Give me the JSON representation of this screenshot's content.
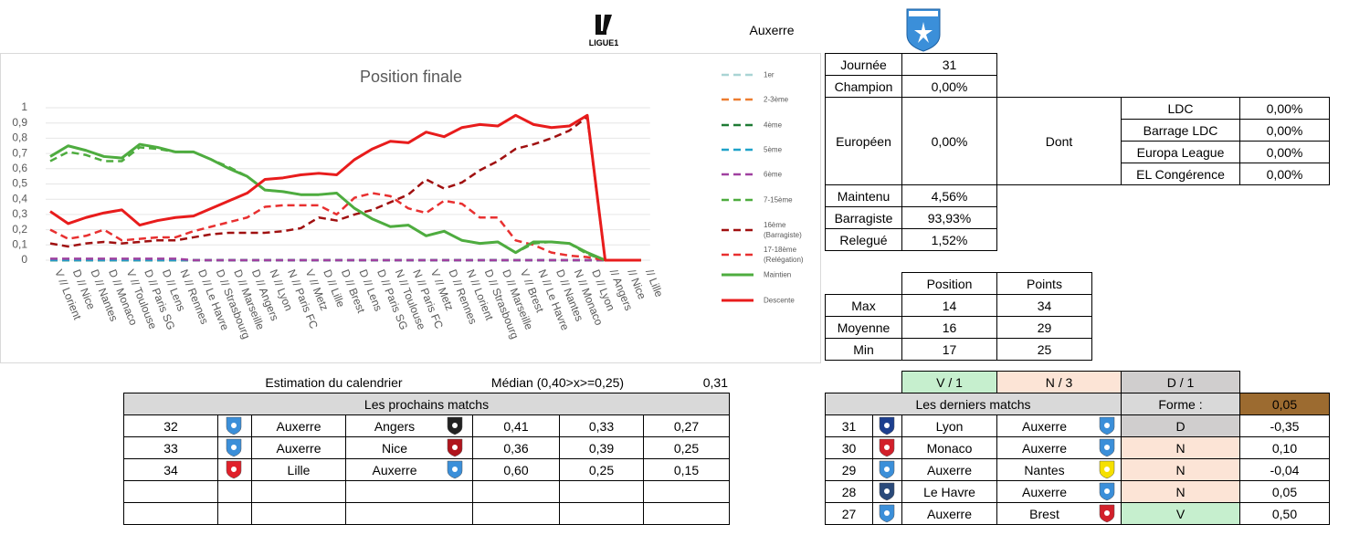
{
  "header": {
    "team": "Auxerre",
    "league_logo": "LIGUE1"
  },
  "chart_data": {
    "type": "line",
    "title": "Position finale",
    "categories": [
      "V // Lorient",
      "D // Nice",
      "D // Nantes",
      "D // Monaco",
      "V // Toulouse",
      "D // Paris SG",
      "D // Lens",
      "N // Rennes",
      "D // Le Havre",
      "D // Strasbourg",
      "D // Marseille",
      "D // Angers",
      "N // Lyon",
      "N // Paris FC",
      "V // Metz",
      "D // Lille",
      "D // Brest",
      "D // Lens",
      "D // Paris SG",
      "N // Toulouse",
      "N // Paris FC",
      "V // Metz",
      "D // Rennes",
      "N // Lorient",
      "D // Strasbourg",
      "D // Marseille",
      "V // Brest",
      "N // Le Havre",
      "D // Nantes",
      "N // Monaco",
      "D // Lyon",
      "// Angers",
      "// Nice",
      "// Lille"
    ],
    "ylim": [
      0,
      1
    ],
    "yticks": [
      0,
      {
        "value": 0.1,
        "label": "0,1"
      },
      {
        "value": 0.2,
        "label": "0,2"
      },
      {
        "value": 0.3,
        "label": "0,3"
      },
      {
        "value": 0.4,
        "label": "0,4"
      },
      {
        "value": 0.5,
        "label": "0,5"
      },
      {
        "value": 0.6,
        "label": "0,6"
      },
      {
        "value": 0.7,
        "label": "0,7"
      },
      {
        "value": 0.8,
        "label": "0,8"
      },
      {
        "value": 0.9,
        "label": "0,9"
      },
      1
    ],
    "grid": true,
    "legend": "right",
    "series": [
      {
        "name": "1er",
        "color": "#a9d4d4",
        "dash": true,
        "values": [
          0,
          0,
          0,
          0,
          0,
          0,
          0,
          0,
          0,
          0,
          0,
          0,
          0,
          0,
          0,
          0,
          0,
          0,
          0,
          0,
          0,
          0,
          0,
          0,
          0,
          0,
          0,
          0,
          0,
          0,
          0,
          0,
          0,
          0
        ]
      },
      {
        "name": "2-3ème",
        "color": "#ed7d31",
        "dash": true,
        "values": [
          0,
          0,
          0,
          0,
          0,
          0,
          0,
          0,
          0,
          0,
          0,
          0,
          0,
          0,
          0,
          0,
          0,
          0,
          0,
          0,
          0,
          0,
          0,
          0,
          0,
          0,
          0,
          0,
          0,
          0,
          0,
          0,
          0,
          0
        ]
      },
      {
        "name": "4ème",
        "color": "#1e7b34",
        "dash": true,
        "values": [
          0,
          0,
          0,
          0,
          0,
          0,
          0,
          0,
          0,
          0,
          0,
          0,
          0,
          0,
          0,
          0,
          0,
          0,
          0,
          0,
          0,
          0,
          0,
          0,
          0,
          0,
          0,
          0,
          0,
          0,
          0,
          0,
          0,
          0
        ]
      },
      {
        "name": "5ème",
        "color": "#1fa2c9",
        "dash": true,
        "values": [
          0,
          0,
          0,
          0,
          0,
          0,
          0,
          0,
          0,
          0,
          0,
          0,
          0,
          0,
          0,
          0,
          0,
          0,
          0,
          0,
          0,
          0,
          0,
          0,
          0,
          0,
          0,
          0,
          0,
          0,
          0,
          0,
          0,
          0
        ]
      },
      {
        "name": "6ème",
        "color": "#a040a0",
        "dash": true,
        "values": [
          0.01,
          0.01,
          0.01,
          0.01,
          0.01,
          0.01,
          0.01,
          0.01,
          0,
          0,
          0,
          0,
          0,
          0,
          0,
          0,
          0,
          0,
          0,
          0,
          0,
          0,
          0,
          0,
          0,
          0,
          0,
          0,
          0,
          0,
          0,
          0,
          0,
          0
        ]
      },
      {
        "name": "7-15ème",
        "color": "#4eac3f",
        "dash": true,
        "values": [
          0.65,
          0.71,
          0.69,
          0.65,
          0.65,
          0.74,
          0.73,
          0.71,
          0.71,
          0.66,
          0.61,
          0.55,
          0.46,
          0.45,
          0.43,
          0.43,
          0.44,
          0.34,
          0.27,
          0.22,
          0.23,
          0.16,
          0.19,
          0.13,
          0.11,
          0.12,
          0.05,
          0.11,
          0.12,
          0.11,
          0.04,
          0,
          0,
          0
        ]
      },
      {
        "name": "16ème (Barragiste)",
        "color": "#a01010",
        "dash": true,
        "values": [
          0.11,
          0.09,
          0.11,
          0.12,
          0.11,
          0.12,
          0.13,
          0.13,
          0.15,
          0.17,
          0.18,
          0.18,
          0.18,
          0.19,
          0.21,
          0.28,
          0.26,
          0.3,
          0.33,
          0.38,
          0.43,
          0.53,
          0.47,
          0.51,
          0.59,
          0.65,
          0.73,
          0.76,
          0.8,
          0.85,
          0.94,
          0,
          0,
          0
        ]
      },
      {
        "name": "17-18ème (Relégation)",
        "color": "#e83030",
        "dash": true,
        "values": [
          0.2,
          0.14,
          0.16,
          0.2,
          0.13,
          0.14,
          0.15,
          0.15,
          0.19,
          0.22,
          0.25,
          0.28,
          0.35,
          0.36,
          0.36,
          0.36,
          0.3,
          0.41,
          0.44,
          0.42,
          0.34,
          0.31,
          0.39,
          0.37,
          0.28,
          0.28,
          0.13,
          0.1,
          0.05,
          0.03,
          0.02,
          0,
          0,
          0
        ]
      },
      {
        "name": "Maintien",
        "color": "#4eac3f",
        "dash": false,
        "values": [
          0.68,
          0.75,
          0.72,
          0.68,
          0.67,
          0.76,
          0.74,
          0.71,
          0.71,
          0.66,
          0.6,
          0.55,
          0.46,
          0.45,
          0.43,
          0.43,
          0.44,
          0.34,
          0.27,
          0.22,
          0.23,
          0.16,
          0.19,
          0.13,
          0.11,
          0.12,
          0.05,
          0.12,
          0.12,
          0.11,
          0.05,
          0,
          0,
          0
        ]
      },
      {
        "name": "Descente",
        "color": "#e81c1c",
        "dash": false,
        "values": [
          0.32,
          0.24,
          0.28,
          0.31,
          0.33,
          0.23,
          0.26,
          0.28,
          0.29,
          0.34,
          0.39,
          0.44,
          0.53,
          0.54,
          0.56,
          0.57,
          0.56,
          0.66,
          0.73,
          0.78,
          0.77,
          0.84,
          0.81,
          0.87,
          0.89,
          0.88,
          0.95,
          0.89,
          0.87,
          0.88,
          0.95,
          0,
          0,
          0
        ]
      }
    ]
  },
  "summary": {
    "rows": [
      [
        "Journée",
        "31"
      ],
      [
        "Champion",
        "0,00%"
      ]
    ],
    "european": {
      "label": "Européen",
      "value": "0,00%",
      "dont": "Dont",
      "sub": [
        [
          "LDC",
          "0,00%"
        ],
        [
          "Barrage LDC",
          "0,00%"
        ],
        [
          "Europa League",
          "0,00%"
        ],
        [
          "EL Congérence",
          "0,00%"
        ]
      ]
    },
    "rows2": [
      [
        "Maintenu",
        "4,56%"
      ],
      [
        "Barragiste",
        "93,93%"
      ],
      [
        "Relegué",
        "1,52%"
      ]
    ]
  },
  "stats": {
    "columns": [
      "Position",
      "Points"
    ],
    "rows": [
      [
        "Max",
        "14",
        "34"
      ],
      [
        "Moyenne",
        "16",
        "29"
      ],
      [
        "Min",
        "17",
        "25"
      ]
    ]
  },
  "estimation": {
    "label": "Estimation du calendrier",
    "median_label": "Médian (0,40>x>=0,25)",
    "median": "0,31"
  },
  "next_matches": {
    "title": "Les prochains matchs",
    "rows": [
      [
        "32",
        "Auxerre",
        "Angers",
        "0,41",
        "0,33",
        "0,27"
      ],
      [
        "33",
        "Auxerre",
        "Nice",
        "0,36",
        "0,39",
        "0,25"
      ],
      [
        "34",
        "Lille",
        "Auxerre",
        "0,60",
        "0,25",
        "0,15"
      ]
    ]
  },
  "form_counts": [
    "V / 1",
    "N / 3",
    "D / 1"
  ],
  "last_matches": {
    "title": "Les derniers matchs",
    "form_label": "Forme :",
    "form_value": "0,05",
    "rows": [
      [
        "31",
        "Lyon",
        "Auxerre",
        "D",
        "-0,35"
      ],
      [
        "30",
        "Monaco",
        "Auxerre",
        "N",
        "0,10"
      ],
      [
        "29",
        "Auxerre",
        "Nantes",
        "N",
        "-0,04"
      ],
      [
        "28",
        "Le Havre",
        "Auxerre",
        "N",
        "0,05"
      ],
      [
        "27",
        "Auxerre",
        "Brest",
        "V",
        "0,50"
      ]
    ]
  }
}
